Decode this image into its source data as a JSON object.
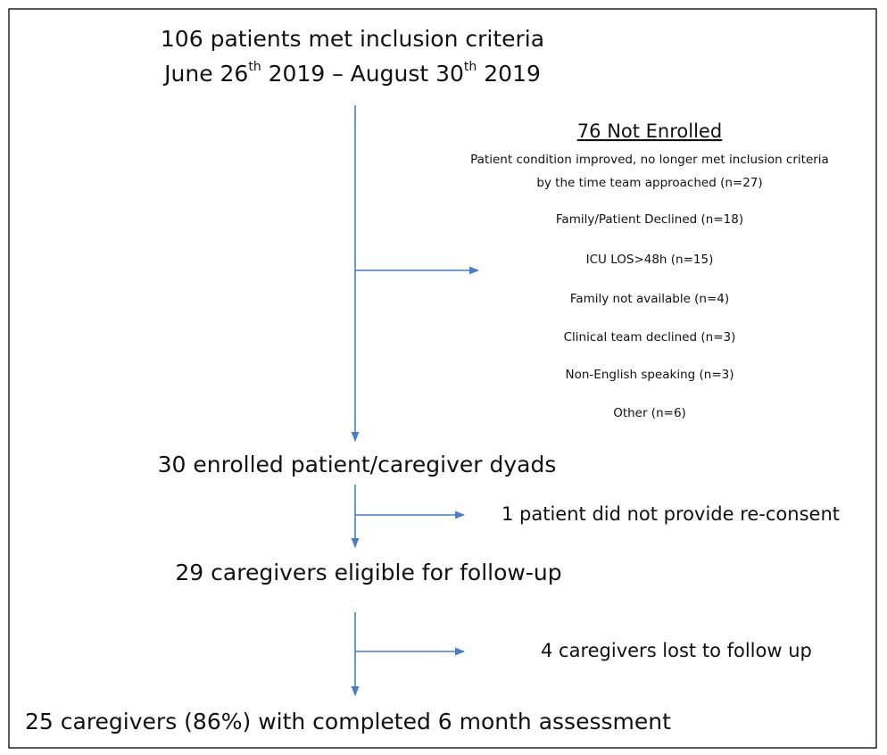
{
  "header": {
    "line1": "106 patients met inclusion criteria",
    "line2": [
      "June 26",
      "th",
      " 2019 – August 30",
      "th",
      " 2019"
    ]
  },
  "not_enrolled": {
    "title": "76 Not Enrolled",
    "reasons": [
      "Patient condition improved, no longer met inclusion criteria",
      "by the time team approached (n=27)",
      "Family/Patient Declined (n=18)",
      "ICU LOS>48h (n=15)",
      "Family not available (n=4)",
      "Clinical team declined (n=3)",
      "Non-English speaking (n=3)",
      "Other (n=6)"
    ]
  },
  "enrolled": "30 enrolled patient/caregiver dyads",
  "no_reconsent": "1 patient did not provide re-consent",
  "eligible": "29 caregivers eligible for follow-up",
  "lost": "4 caregivers lost to follow up",
  "completed": "25 caregivers (86%) with completed 6 month assessment"
}
